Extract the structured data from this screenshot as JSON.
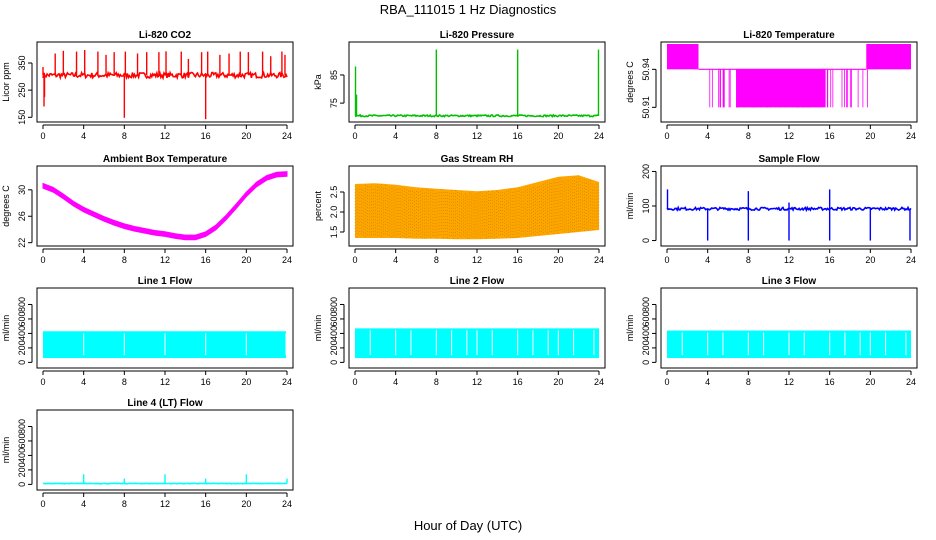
{
  "figure": {
    "title": "RBA_111015  1 Hz Diagnostics",
    "xlabel": "Hour of Day (UTC)"
  },
  "chart_data": [
    {
      "type": "line",
      "title": "Li-820 CO2",
      "ylabel": "Licor ppm",
      "color": "#ff0000",
      "xlim": [
        0,
        24
      ],
      "xticks": [
        0,
        4,
        8,
        12,
        16,
        20,
        24
      ],
      "ylim": [
        140,
        420
      ],
      "yticks": [
        150,
        250,
        350
      ],
      "ytick_labels": [
        "150",
        "250",
        "350"
      ],
      "style": "spiky",
      "base": 305,
      "noise": 10,
      "dips": [
        {
          "x": 0.1,
          "y": 190
        },
        {
          "x": 0.15,
          "y": 225
        },
        {
          "x": 8.0,
          "y": 148
        },
        {
          "x": 16.0,
          "y": 143
        }
      ],
      "spikes": [
        {
          "x": 0.0,
          "y": 335
        },
        {
          "x": 1.2,
          "y": 385
        },
        {
          "x": 2.0,
          "y": 395
        },
        {
          "x": 3.3,
          "y": 392
        },
        {
          "x": 4.1,
          "y": 398
        },
        {
          "x": 5.4,
          "y": 392
        },
        {
          "x": 6.2,
          "y": 380
        },
        {
          "x": 7.0,
          "y": 390
        },
        {
          "x": 8.1,
          "y": 392
        },
        {
          "x": 9.3,
          "y": 385
        },
        {
          "x": 10.2,
          "y": 390
        },
        {
          "x": 11.4,
          "y": 390
        },
        {
          "x": 12.1,
          "y": 393
        },
        {
          "x": 13.6,
          "y": 392
        },
        {
          "x": 14.3,
          "y": 365
        },
        {
          "x": 15.6,
          "y": 390
        },
        {
          "x": 16.2,
          "y": 392
        },
        {
          "x": 17.4,
          "y": 380
        },
        {
          "x": 18.3,
          "y": 385
        },
        {
          "x": 19.4,
          "y": 392
        },
        {
          "x": 20.2,
          "y": 390
        },
        {
          "x": 21.6,
          "y": 392
        },
        {
          "x": 22.4,
          "y": 375
        },
        {
          "x": 23.5,
          "y": 392
        },
        {
          "x": 23.8,
          "y": 380
        }
      ]
    },
    {
      "type": "line",
      "title": "Li-820 Pressure",
      "ylabel": "kPa",
      "color": "#00c000",
      "xlim": [
        0,
        24
      ],
      "xticks": [
        0,
        4,
        8,
        12,
        16,
        20,
        24
      ],
      "ylim": [
        69,
        96
      ],
      "yticks": [
        75,
        85
      ],
      "ytick_labels": [
        "75",
        "85"
      ],
      "style": "spiky",
      "base": 70.5,
      "noise": 0.3,
      "dips": [],
      "spikes": [
        {
          "x": 0.05,
          "y": 88
        },
        {
          "x": 0.15,
          "y": 78
        },
        {
          "x": 8.0,
          "y": 94
        },
        {
          "x": 16.0,
          "y": 94
        },
        {
          "x": 23.95,
          "y": 94
        }
      ]
    },
    {
      "type": "step",
      "title": "Li-820 Temperature",
      "ylabel": "degrees C",
      "color": "#ff00ff",
      "xlim": [
        0,
        24
      ],
      "xticks": [
        0,
        4,
        8,
        12,
        16,
        20,
        24
      ],
      "ylim": [
        50.9,
        50.96
      ],
      "yticks": [
        50.91,
        50.94
      ],
      "ytick_labels": [
        "50.91",
        "50.94"
      ],
      "low": 50.91,
      "high": 50.94,
      "top": 50.97,
      "top_blocks": [
        [
          0,
          3.1
        ],
        [
          19.6,
          24
        ]
      ],
      "dense_range": [
        3.6,
        19.8
      ]
    },
    {
      "type": "line",
      "title": "Ambient Box Temperature",
      "ylabel": "degrees C",
      "color": "#ff00ff",
      "xlim": [
        0,
        24
      ],
      "xticks": [
        0,
        4,
        8,
        12,
        16,
        20,
        24
      ],
      "ylim": [
        21.8,
        33.3
      ],
      "yticks": [
        22,
        26,
        30
      ],
      "ytick_labels": [
        "22",
        "26",
        "30"
      ],
      "style": "band",
      "band_width": 0.7,
      "x": [
        0,
        1,
        2,
        3,
        4,
        5,
        6,
        7,
        8,
        9,
        10,
        11,
        12,
        13,
        14,
        15,
        16,
        17,
        18,
        19,
        20,
        21,
        22,
        23,
        24
      ],
      "y": [
        30.6,
        30.0,
        29.0,
        27.9,
        27.0,
        26.3,
        25.6,
        25.0,
        24.5,
        24.1,
        23.8,
        23.5,
        23.3,
        23.0,
        22.8,
        22.8,
        23.3,
        24.3,
        25.8,
        27.5,
        29.3,
        30.8,
        31.8,
        32.3,
        32.4
      ]
    },
    {
      "type": "line",
      "title": "Gas Stream RH",
      "ylabel": "percent",
      "color": "#ffa500",
      "color2": "#8b6a00",
      "xlim": [
        0,
        24
      ],
      "xticks": [
        0,
        4,
        8,
        12,
        16,
        20,
        24
      ],
      "ylim": [
        1.2,
        3.1
      ],
      "yticks": [
        1.5,
        2.0,
        2.5
      ],
      "ytick_labels": [
        "1.5",
        "2.0",
        "2.5"
      ],
      "style": "fill",
      "x": [
        0,
        2,
        4,
        6,
        8,
        10,
        12,
        14,
        16,
        18,
        20,
        22,
        24
      ],
      "lo": [
        1.35,
        1.35,
        1.35,
        1.33,
        1.33,
        1.32,
        1.32,
        1.33,
        1.35,
        1.4,
        1.45,
        1.5,
        1.55
      ],
      "hi": [
        2.7,
        2.72,
        2.68,
        2.62,
        2.58,
        2.55,
        2.52,
        2.55,
        2.62,
        2.75,
        2.88,
        2.92,
        2.75
      ]
    },
    {
      "type": "line",
      "title": "Sample Flow",
      "ylabel": "ml/min",
      "color": "#0000ff",
      "xlim": [
        0,
        24
      ],
      "xticks": [
        0,
        4,
        8,
        12,
        16,
        20,
        24
      ],
      "ylim": [
        -10,
        210
      ],
      "yticks": [
        0,
        100,
        200
      ],
      "ytick_labels": [
        "0",
        "100",
        "200"
      ],
      "style": "spiky",
      "base": 92,
      "noise": 4,
      "dips": [
        {
          "x": 4.0,
          "y": 0
        },
        {
          "x": 8.0,
          "y": 0
        },
        {
          "x": 12.0,
          "y": 0
        },
        {
          "x": 16.0,
          "y": 0
        },
        {
          "x": 20.0,
          "y": 0
        },
        {
          "x": 23.9,
          "y": 0
        }
      ],
      "spikes": [
        {
          "x": 0.05,
          "y": 148
        },
        {
          "x": 8.0,
          "y": 143
        },
        {
          "x": 16.0,
          "y": 148
        },
        {
          "x": 12.0,
          "y": 110
        }
      ]
    },
    {
      "type": "line",
      "title": "Line 1 Flow",
      "ylabel": "ml/min",
      "color": "#00ffff",
      "xlim": [
        0,
        24
      ],
      "xticks": [
        0,
        4,
        8,
        12,
        16,
        20,
        24
      ],
      "ylim": [
        -50,
        1000
      ],
      "yticks": [
        0,
        200,
        400,
        600,
        800
      ],
      "ytick_labels": [
        "0",
        "200",
        "400",
        "600",
        "800"
      ],
      "style": "rect",
      "lo": 60,
      "hi": 430,
      "gaps": [
        4,
        8,
        12,
        16,
        20,
        23.9
      ],
      "end": 23.9
    },
    {
      "type": "line",
      "title": "Line 2 Flow",
      "ylabel": "ml/min",
      "color": "#00ffff",
      "xlim": [
        0,
        24
      ],
      "xticks": [
        0,
        4,
        8,
        12,
        16,
        20,
        24
      ],
      "ylim": [
        -50,
        1000
      ],
      "yticks": [
        0,
        200,
        400,
        600,
        800
      ],
      "ytick_labels": [
        "0",
        "200",
        "400",
        "600",
        "800"
      ],
      "style": "rect",
      "lo": 60,
      "hi": 470,
      "gaps": [
        1.5,
        4,
        5.5,
        8,
        9.5,
        11,
        12,
        13.5,
        16,
        17.5,
        19,
        20,
        21.5,
        23.5
      ],
      "end": 24
    },
    {
      "type": "line",
      "title": "Line 3 Flow",
      "ylabel": "ml/min",
      "color": "#00ffff",
      "xlim": [
        0,
        24
      ],
      "xticks": [
        0,
        4,
        8,
        12,
        16,
        20,
        24
      ],
      "ylim": [
        -50,
        1000
      ],
      "yticks": [
        0,
        200,
        400,
        600,
        800
      ],
      "ytick_labels": [
        "0",
        "200",
        "400",
        "600",
        "800"
      ],
      "style": "rect",
      "lo": 60,
      "hi": 440,
      "gaps": [
        1.5,
        4,
        5.5,
        8,
        9.5,
        12,
        13.5,
        16,
        17.5,
        19,
        20,
        21.5,
        23.5
      ],
      "end": 24
    },
    {
      "type": "line",
      "title": "Line 4 (LT) Flow",
      "ylabel": "ml/min",
      "color": "#00ffff",
      "xlim": [
        0,
        24
      ],
      "xticks": [
        0,
        4,
        8,
        12,
        16,
        20,
        24
      ],
      "ylim": [
        -50,
        1000
      ],
      "yticks": [
        0,
        200,
        400,
        600,
        800
      ],
      "ytick_labels": [
        "0",
        "200",
        "400",
        "600",
        "800"
      ],
      "style": "spiky",
      "base": 12,
      "noise": 4,
      "dips": [],
      "spikes": [
        {
          "x": 4.0,
          "y": 140
        },
        {
          "x": 8.0,
          "y": 80
        },
        {
          "x": 12.0,
          "y": 140
        },
        {
          "x": 16.0,
          "y": 80
        },
        {
          "x": 20.0,
          "y": 140
        },
        {
          "x": 24.0,
          "y": 80
        }
      ]
    }
  ]
}
